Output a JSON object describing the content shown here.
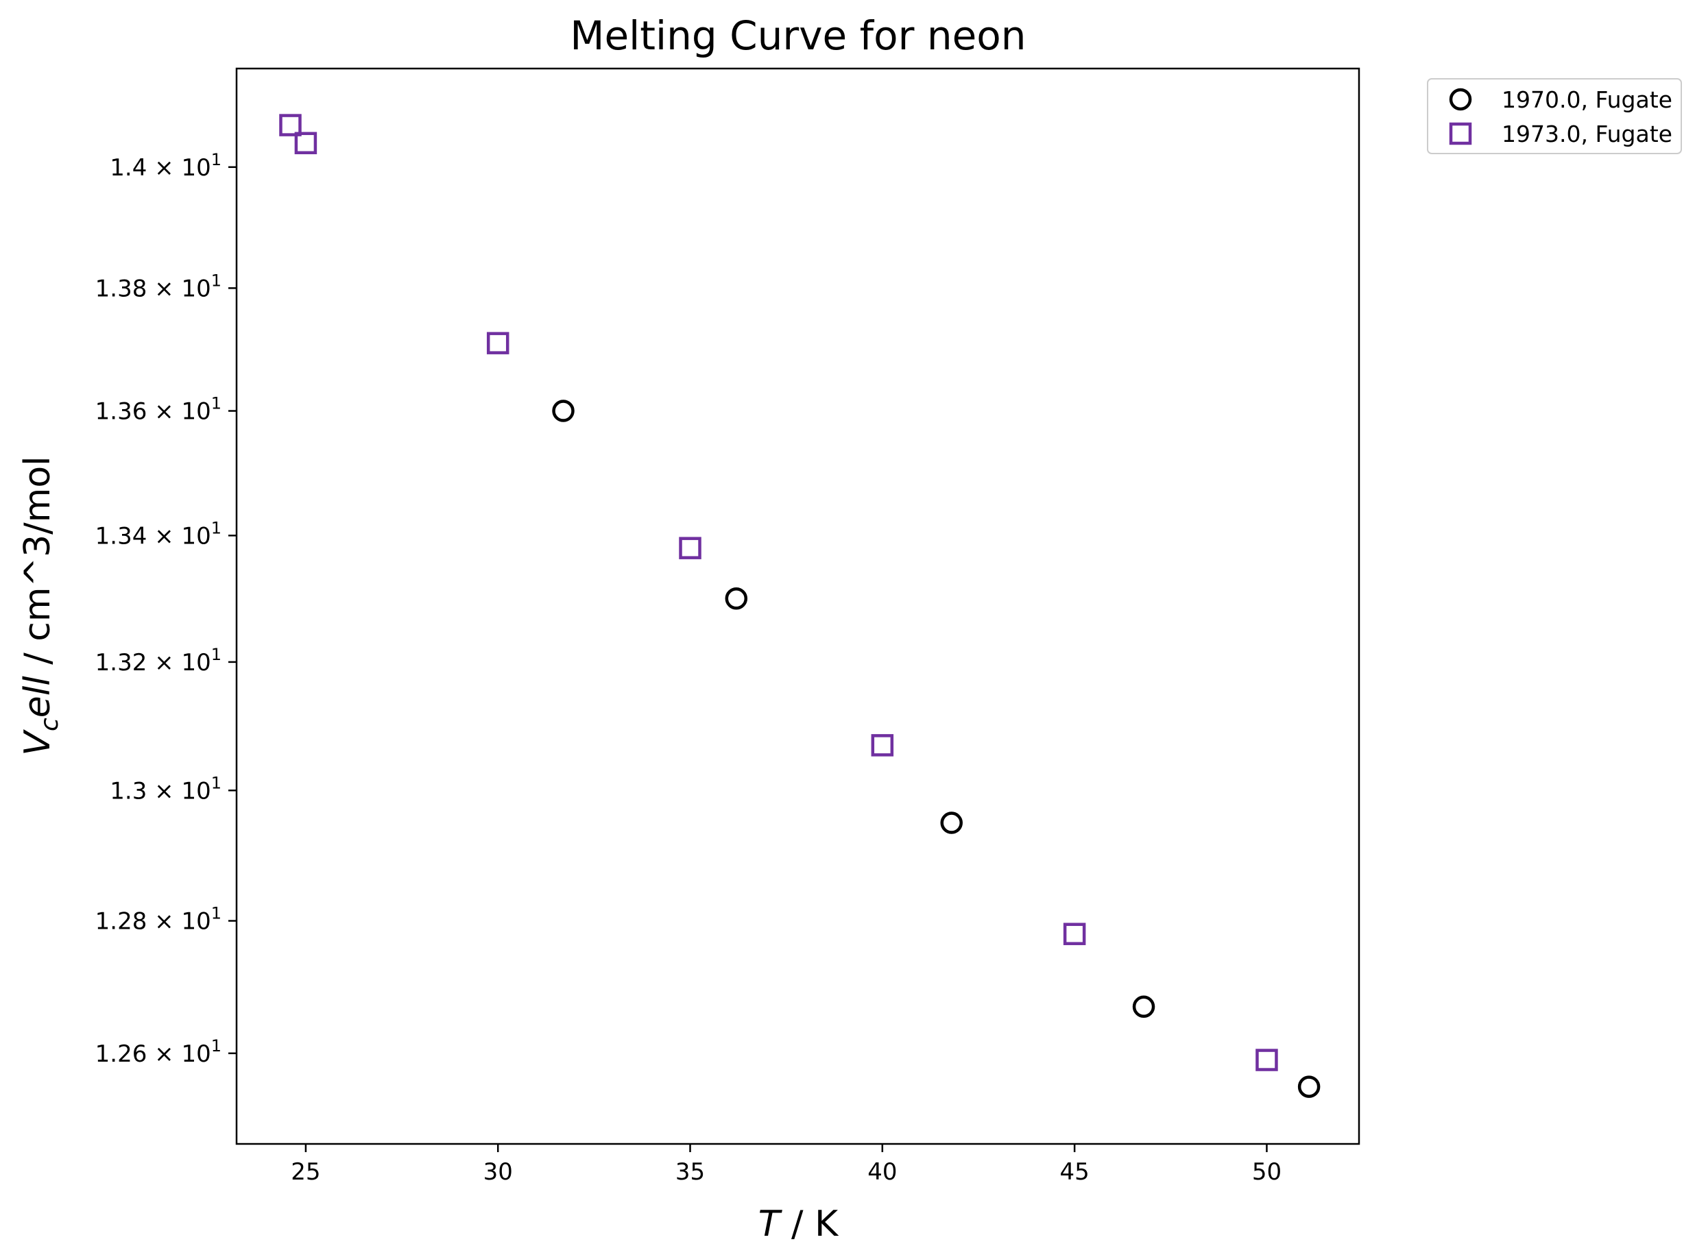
{
  "chart_data": {
    "type": "scatter",
    "title": "Melting Curve for neon",
    "xlabel": "T / K",
    "xlabel_parts": {
      "var": "T",
      "unit": " / K"
    },
    "ylabel": "V_cell / cm^3/mol",
    "ylabel_parts": {
      "main": "V",
      "sub": "c",
      "rest": "ell",
      "unit": " / cm^3/mol"
    },
    "x_scale": "linear",
    "y_scale": "log",
    "xlim": [
      23.2,
      52.4
    ],
    "ylim": [
      12.465,
      14.165
    ],
    "grid": false,
    "legend_position": "outside-top-right",
    "x_ticks": [
      {
        "value": 25,
        "label": "25"
      },
      {
        "value": 30,
        "label": "30"
      },
      {
        "value": 35,
        "label": "35"
      },
      {
        "value": 40,
        "label": "40"
      },
      {
        "value": 45,
        "label": "45"
      },
      {
        "value": 50,
        "label": "50"
      }
    ],
    "y_ticks": [
      {
        "value": 12.6,
        "label": "1.26 × 10",
        "exp": "1"
      },
      {
        "value": 12.8,
        "label": "1.28 × 10",
        "exp": "1"
      },
      {
        "value": 13.0,
        "label": "1.3 × 10",
        "exp": "1"
      },
      {
        "value": 13.2,
        "label": "1.32 × 10",
        "exp": "1"
      },
      {
        "value": 13.4,
        "label": "1.34 × 10",
        "exp": "1"
      },
      {
        "value": 13.6,
        "label": "1.36 × 10",
        "exp": "1"
      },
      {
        "value": 13.8,
        "label": "1.38 × 10",
        "exp": "1"
      },
      {
        "value": 14.0,
        "label": "1.4 × 10",
        "exp": "1"
      }
    ],
    "series": [
      {
        "name": "1970.0, Fugate",
        "marker": "circle",
        "color": "#000000",
        "points": [
          {
            "x": 31.7,
            "y": 13.6
          },
          {
            "x": 36.2,
            "y": 13.3
          },
          {
            "x": 41.8,
            "y": 12.95
          },
          {
            "x": 46.8,
            "y": 12.67
          },
          {
            "x": 51.1,
            "y": 12.55
          }
        ]
      },
      {
        "name": "1973.0, Fugate",
        "marker": "square",
        "color": "#7030a0",
        "points": [
          {
            "x": 24.6,
            "y": 14.07
          },
          {
            "x": 25.0,
            "y": 14.04
          },
          {
            "x": 30.0,
            "y": 13.71
          },
          {
            "x": 35.0,
            "y": 13.38
          },
          {
            "x": 40.0,
            "y": 13.07
          },
          {
            "x": 45.0,
            "y": 12.78
          },
          {
            "x": 50.0,
            "y": 12.59
          }
        ]
      }
    ]
  }
}
